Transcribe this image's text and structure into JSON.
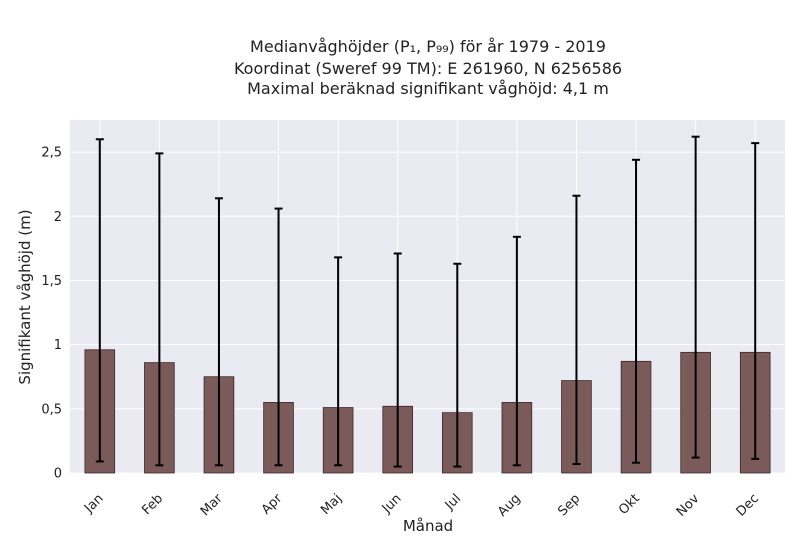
{
  "chart_data": {
    "type": "bar",
    "title_lines": [
      "Medianvåghöjder (P₁, P₉₉) för år 1979 - 2019",
      "Koordinat (Sweref 99 TM): E 261960, N 6256586",
      "Maximal beräknad signifikant våghöjd: 4,1 m"
    ],
    "xlabel": "Månad",
    "ylabel": "Signifikant våghöjd (m)",
    "categories": [
      "Jan",
      "Feb",
      "Mar",
      "Apr",
      "Maj",
      "Jun",
      "Jul",
      "Aug",
      "Sep",
      "Okt",
      "Nov",
      "Dec"
    ],
    "values": [
      0.96,
      0.86,
      0.75,
      0.55,
      0.51,
      0.52,
      0.47,
      0.55,
      0.72,
      0.87,
      0.94,
      0.94
    ],
    "error_low": [
      0.09,
      0.06,
      0.06,
      0.06,
      0.06,
      0.05,
      0.05,
      0.06,
      0.07,
      0.08,
      0.12,
      0.11
    ],
    "error_high": [
      2.6,
      2.49,
      2.14,
      2.06,
      1.68,
      1.71,
      1.63,
      1.84,
      2.16,
      2.44,
      2.62,
      2.57
    ],
    "ylim": [
      0,
      2.75
    ],
    "yticks": [
      0,
      0.5,
      1,
      1.5,
      2,
      2.5
    ],
    "ytick_labels": [
      "0",
      "0,5",
      "1",
      "1,5",
      "2",
      "2,5"
    ],
    "grid": true,
    "colors": {
      "bar": "#7b5a5a",
      "bar_edge": "#3a2a2a",
      "plot_bg": "#eaeaf2",
      "grid": "#ffffff",
      "error": "#000000"
    }
  }
}
